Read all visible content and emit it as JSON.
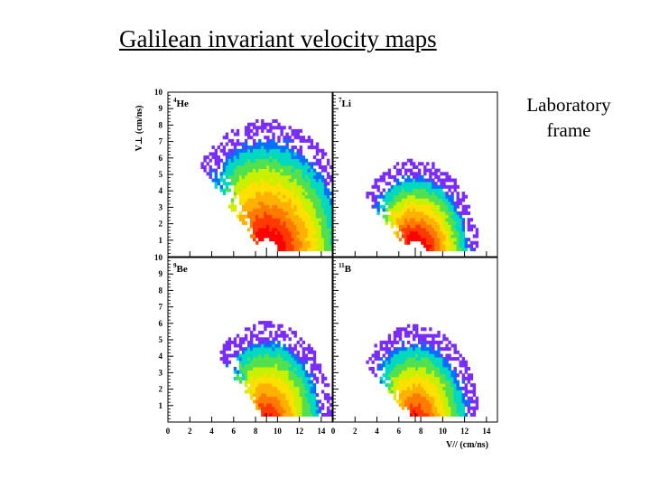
{
  "slide": {
    "title": "Galilean invariant velocity maps",
    "side_note_line1": "Laboratory",
    "side_note_line2": "frame"
  },
  "colors": {
    "scale": [
      "#ff0000",
      "#ff3a00",
      "#ff7a00",
      "#ffb000",
      "#ffe000",
      "#c8f000",
      "#50e050",
      "#00d8c0",
      "#0070ff",
      "#7a2cff",
      "#c030ff"
    ]
  },
  "chart_data": {
    "type": "heatmap",
    "title": "Galilean invariant velocity maps",
    "xlabel": "V// (cm/ns)",
    "ylabel": "V⊥ (cm/ns)",
    "xlim": [
      0,
      15
    ],
    "ylim": [
      0,
      10
    ],
    "x_ticks": [
      0,
      2,
      4,
      6,
      8,
      10,
      12,
      14
    ],
    "y_ticks": [
      1,
      2,
      3,
      4,
      5,
      6,
      7,
      8,
      9,
      10
    ],
    "panels": [
      {
        "isotope": "He",
        "mass_number": "4",
        "source_x": 9,
        "source_y": 0,
        "inner_radius": 1.1,
        "outer_radius": 7.7,
        "max_polar_deg": 130
      },
      {
        "isotope": "Li",
        "mass_number": "7",
        "source_x": 7.5,
        "source_y": 0,
        "inner_radius": 1.0,
        "outer_radius": 5.3,
        "max_polar_deg": 135
      },
      {
        "isotope": "Be",
        "mass_number": "9",
        "source_x": 9,
        "source_y": 0,
        "inner_radius": 0,
        "outer_radius": 5.5,
        "max_polar_deg": 130
      },
      {
        "isotope": "B",
        "mass_number": "11",
        "source_x": 7.5,
        "source_y": 0,
        "inner_radius": 0,
        "outer_radius": 5.3,
        "max_polar_deg": 135
      }
    ]
  }
}
